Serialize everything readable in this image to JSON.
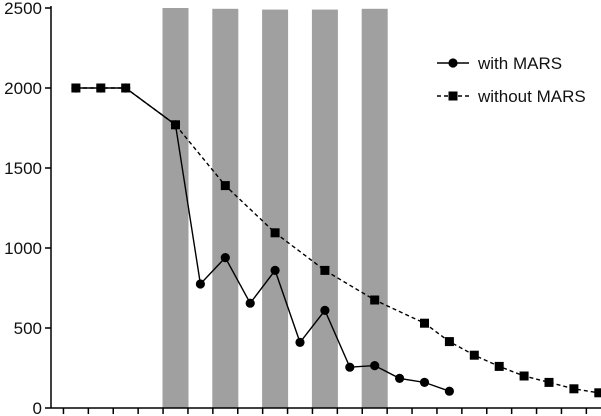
{
  "chart_data": {
    "type": "line",
    "title": "",
    "xlabel": "",
    "ylabel": "",
    "ylim": [
      0,
      2500
    ],
    "yticks": [
      0,
      500,
      1000,
      1500,
      2000,
      2500
    ],
    "ytick_labels": [
      "0",
      "500",
      "1000",
      "1500",
      "2000",
      "2500"
    ],
    "xlim": [
      0,
      22.5
    ],
    "x_tick_count": 22,
    "grid": false,
    "legend": {
      "placement": "top-right"
    },
    "bands": [
      {
        "x": 5,
        "y_top": 2500
      },
      {
        "x": 7,
        "y_top": 2495
      },
      {
        "x": 9,
        "y_top": 2490
      },
      {
        "x": 11,
        "y_top": 2490
      },
      {
        "x": 13,
        "y_top": 2495
      }
    ],
    "band_color": "#a0a0a0",
    "series": [
      {
        "name": "with MARS",
        "marker": "circle",
        "line_style": "solid",
        "x": [
          1,
          2,
          3,
          5,
          6,
          7,
          8,
          9,
          10,
          11,
          12,
          13,
          14,
          15,
          16
        ],
        "values": [
          2000,
          2000,
          2000,
          1770,
          775,
          940,
          655,
          860,
          410,
          610,
          255,
          265,
          185,
          160,
          105
        ]
      },
      {
        "name": "without MARS",
        "marker": "square",
        "line_style": "dashed",
        "x": [
          1,
          2,
          3,
          5,
          7,
          9,
          11,
          13,
          15,
          16,
          17,
          18,
          19,
          20,
          21,
          22
        ],
        "values": [
          2000,
          2000,
          2000,
          1770,
          1390,
          1095,
          860,
          675,
          530,
          415,
          330,
          260,
          200,
          160,
          120,
          95
        ]
      }
    ],
    "colors": {
      "line": "#000000",
      "axis": "#000000"
    }
  }
}
